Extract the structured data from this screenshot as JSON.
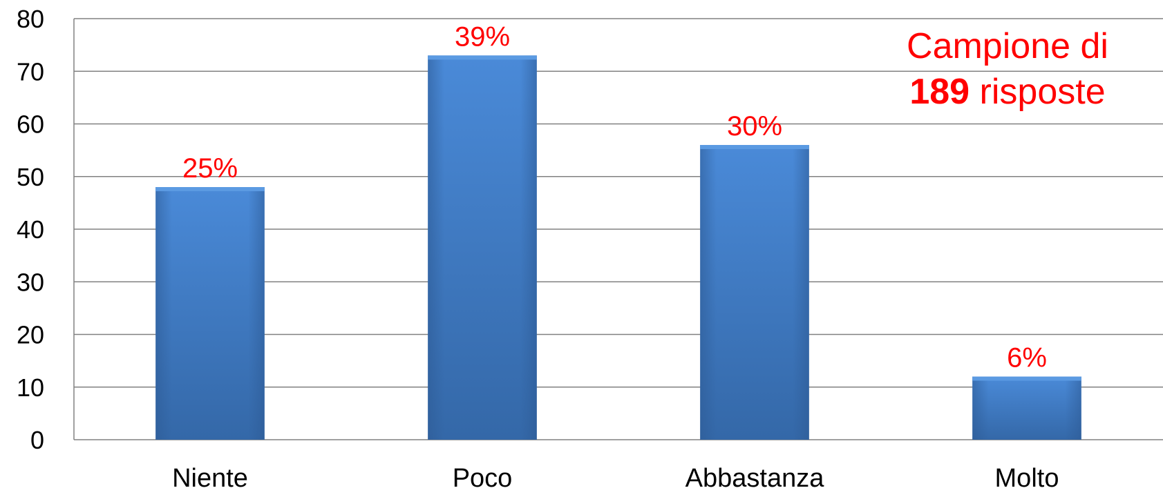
{
  "chart_data": {
    "type": "bar",
    "categories": [
      "Niente",
      "Poco",
      "Abbastanza",
      "Molto"
    ],
    "values": [
      48,
      73,
      56,
      12
    ],
    "data_labels": [
      "25%",
      "39%",
      "30%",
      "6%"
    ],
    "ylim": [
      0,
      80
    ],
    "yticks": [
      0,
      10,
      20,
      30,
      40,
      50,
      60,
      70,
      80
    ],
    "grid": true,
    "title": "",
    "xlabel": "",
    "ylabel": "",
    "colors": {
      "bar": "#3f7fcf",
      "bar_top": "#5b9ae2",
      "data_label": "#ff0000",
      "grid": "#808080"
    }
  },
  "annotation": {
    "line1": "Campione di",
    "count": "189",
    "line2_suffix": " risposte"
  }
}
